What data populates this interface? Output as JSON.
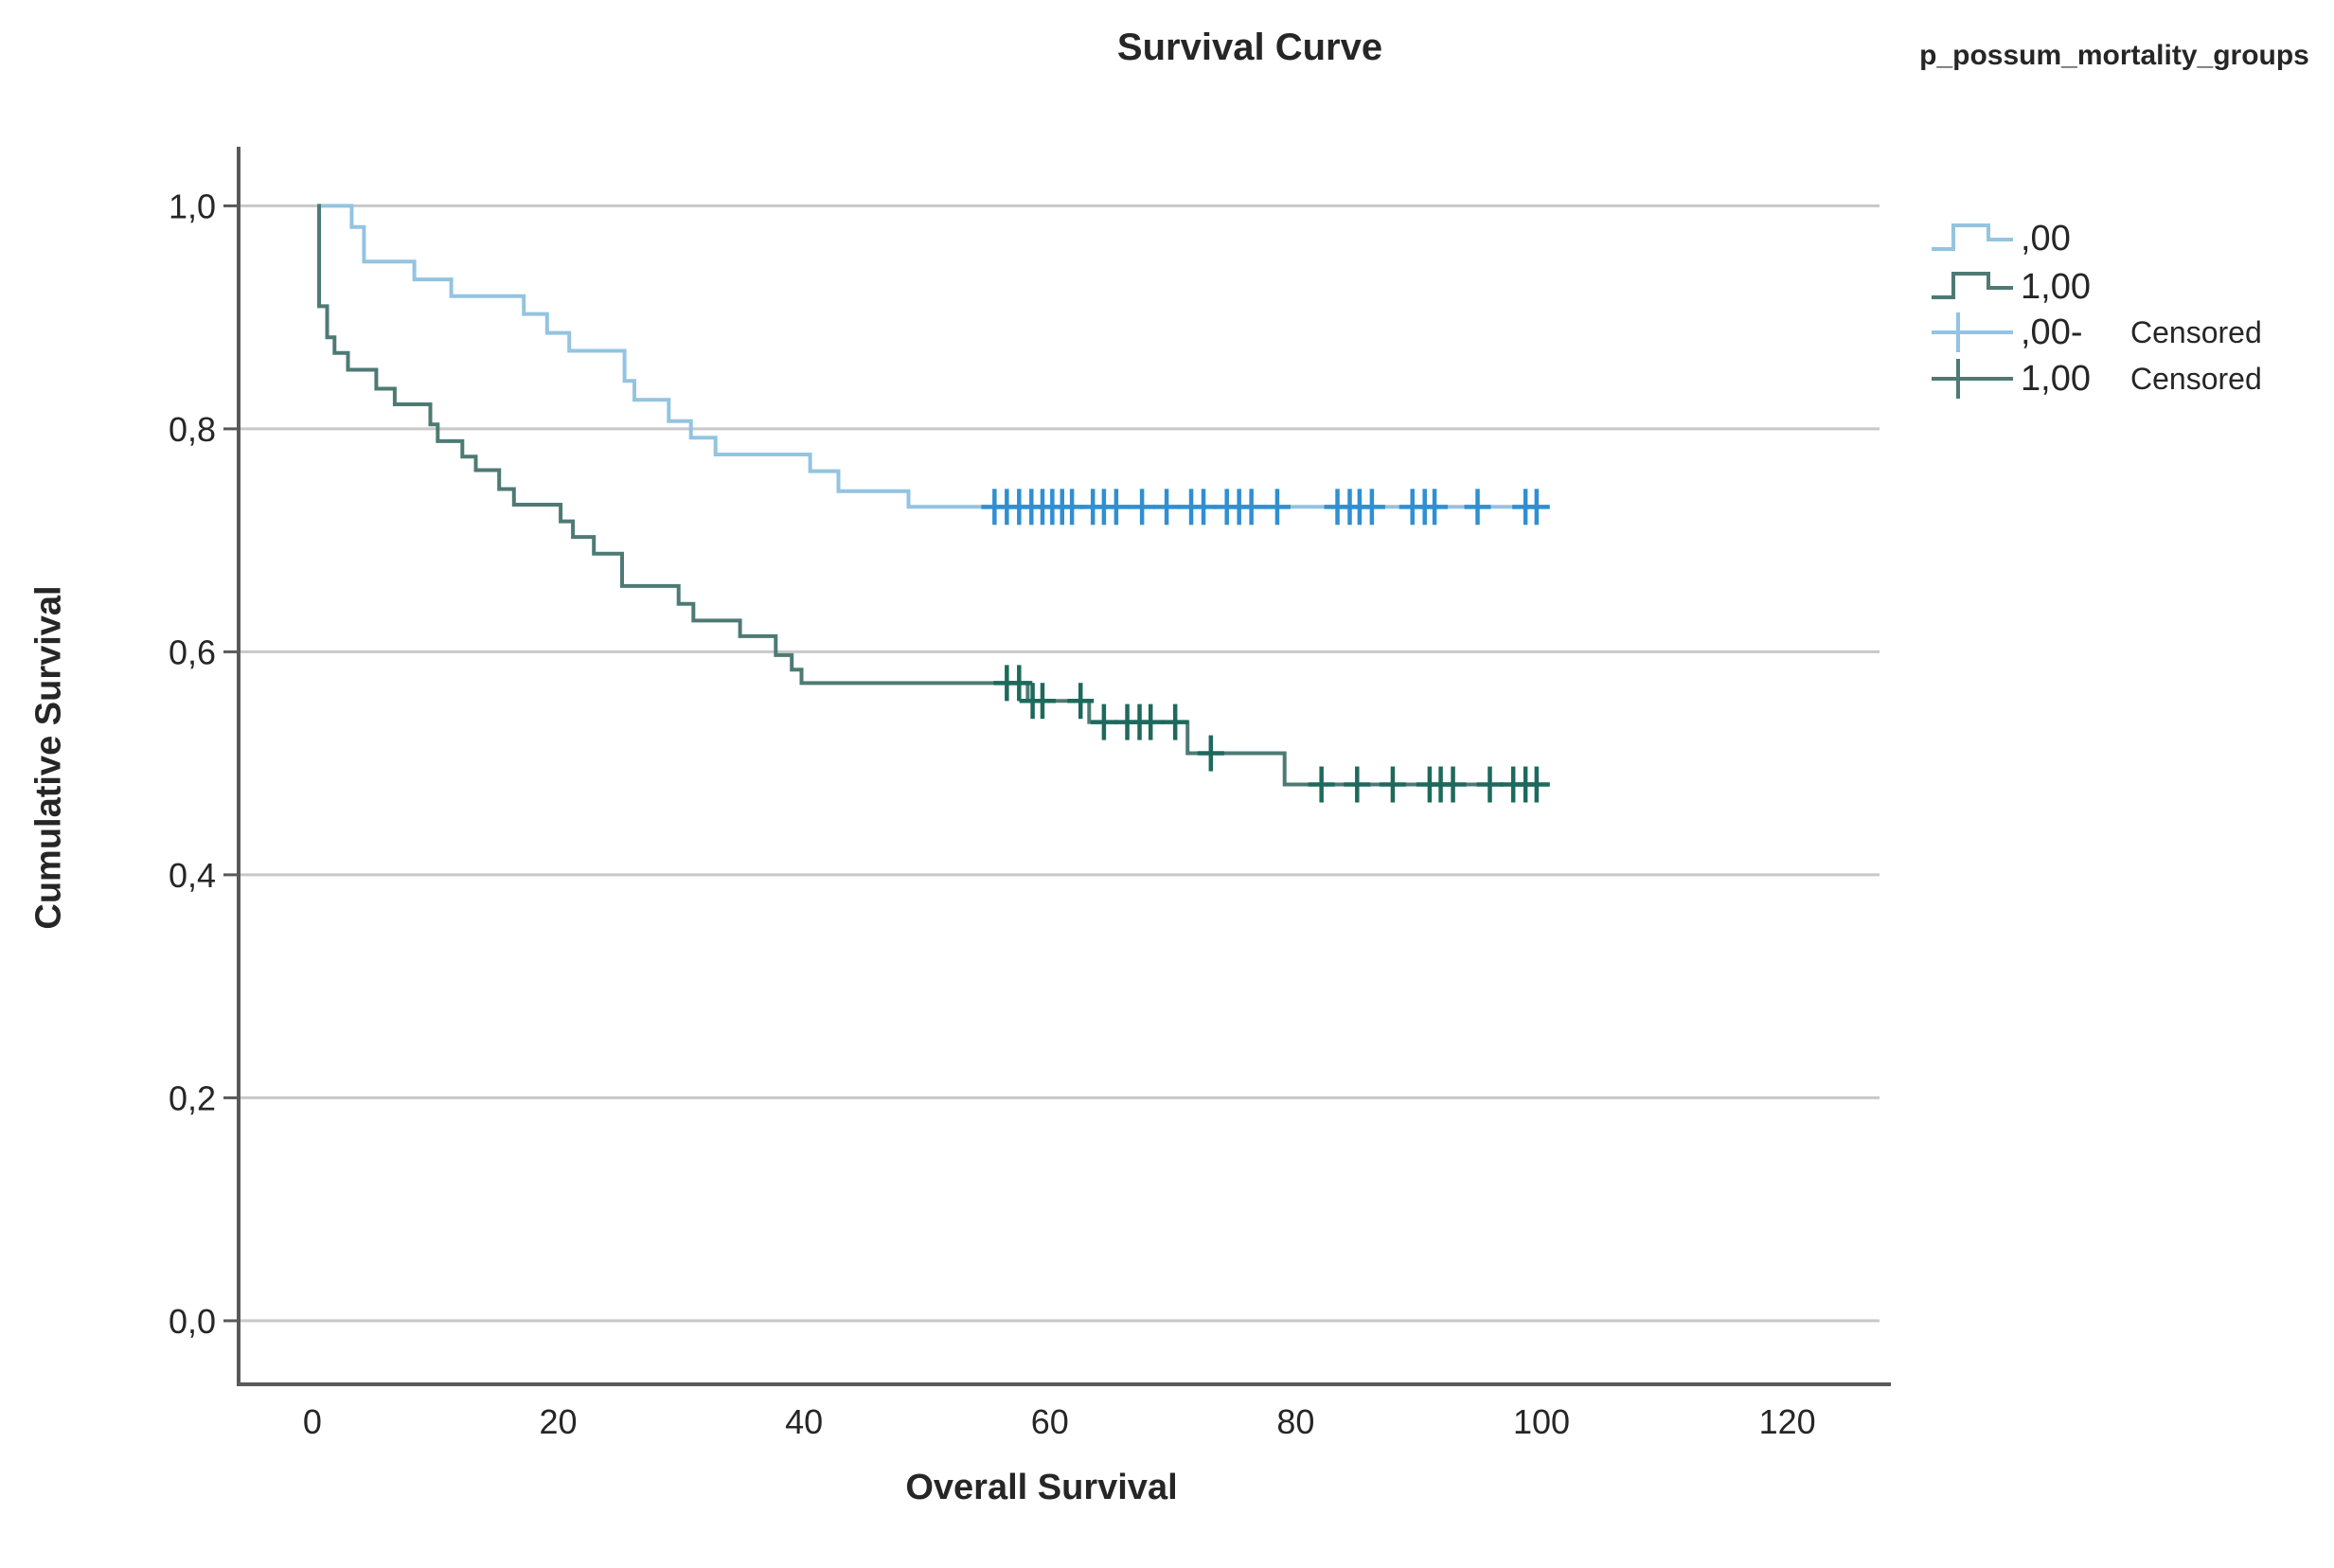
{
  "chart_data": {
    "type": "line",
    "subtype": "kaplan_meier_step",
    "title": "Survival Curve",
    "legend_title": "p_possum_mortality_groups",
    "xlabel": "Overall Survival",
    "ylabel": "Cumulative Survival",
    "xlim": [
      -6,
      127.5
    ],
    "ylim": [
      -0.057,
      1.053
    ],
    "x_ticks": [
      0,
      20,
      40,
      60,
      80,
      100,
      120
    ],
    "x_tick_labels": [
      "0",
      "20",
      "40",
      "60",
      "80",
      "100",
      "120"
    ],
    "y_ticks": [
      0.0,
      0.2,
      0.4,
      0.6,
      0.8,
      1.0
    ],
    "y_tick_labels": [
      "0,0",
      "0,2",
      "0,4",
      "0,6",
      "0,8",
      "1,0"
    ],
    "grid": "horizontal",
    "legend_position": "top-right",
    "colors": {
      "grid": "#c8c8c8",
      "axis": "#595959",
      "text": "#262626",
      "background": "#ffffff"
    },
    "series": [
      {
        "name": ",00",
        "line_color": "#93c4e1",
        "marker_color": "#2f8fd2",
        "end_x": 100.5,
        "steps": [
          [
            0.4,
            1.0
          ],
          [
            3.2,
            0.981
          ],
          [
            4.2,
            0.95
          ],
          [
            8.3,
            0.934
          ],
          [
            11.3,
            0.919
          ],
          [
            17.2,
            0.903
          ],
          [
            19.1,
            0.886
          ],
          [
            20.9,
            0.87
          ],
          [
            25.4,
            0.843
          ],
          [
            26.2,
            0.826
          ],
          [
            29.0,
            0.807
          ],
          [
            30.8,
            0.792
          ],
          [
            32.8,
            0.777
          ],
          [
            40.5,
            0.762
          ],
          [
            42.8,
            0.744
          ],
          [
            48.5,
            0.73
          ]
        ],
        "censored": [
          [
            55.5,
            0.73
          ],
          [
            56.5,
            0.73
          ],
          [
            57.5,
            0.73
          ],
          [
            58.5,
            0.73
          ],
          [
            59.4,
            0.73
          ],
          [
            60.2,
            0.73
          ],
          [
            61.0,
            0.73
          ],
          [
            61.8,
            0.73
          ],
          [
            63.5,
            0.73
          ],
          [
            64.4,
            0.73
          ],
          [
            65.4,
            0.73
          ],
          [
            67.5,
            0.73
          ],
          [
            69.5,
            0.73
          ],
          [
            71.5,
            0.73
          ],
          [
            72.5,
            0.73
          ],
          [
            74.4,
            0.73
          ],
          [
            75.4,
            0.73
          ],
          [
            76.4,
            0.73
          ],
          [
            78.5,
            0.73
          ],
          [
            83.4,
            0.73
          ],
          [
            84.4,
            0.73
          ],
          [
            85.2,
            0.73
          ],
          [
            86.2,
            0.73
          ],
          [
            89.5,
            0.73
          ],
          [
            90.5,
            0.73
          ],
          [
            91.3,
            0.73
          ],
          [
            94.8,
            0.73
          ],
          [
            98.7,
            0.73
          ],
          [
            99.6,
            0.73
          ]
        ]
      },
      {
        "name": "1,00",
        "line_color": "#4e7a74",
        "marker_color": "#1d6a5c",
        "end_x": 100.5,
        "steps": [
          [
            0.4,
            1.0
          ],
          [
            0.55,
            0.91
          ],
          [
            1.2,
            0.882
          ],
          [
            1.8,
            0.868
          ],
          [
            2.9,
            0.853
          ],
          [
            5.2,
            0.836
          ],
          [
            6.7,
            0.822
          ],
          [
            9.6,
            0.804
          ],
          [
            10.2,
            0.789
          ],
          [
            12.2,
            0.775
          ],
          [
            13.3,
            0.763
          ],
          [
            15.2,
            0.746
          ],
          [
            16.4,
            0.732
          ],
          [
            20.2,
            0.717
          ],
          [
            21.2,
            0.703
          ],
          [
            22.9,
            0.688
          ],
          [
            25.2,
            0.659
          ],
          [
            29.8,
            0.643
          ],
          [
            31.0,
            0.628
          ],
          [
            34.8,
            0.614
          ],
          [
            37.7,
            0.597
          ],
          [
            39.0,
            0.584
          ],
          [
            39.8,
            0.572
          ],
          [
            58.2,
            0.556
          ],
          [
            63.2,
            0.537
          ],
          [
            71.2,
            0.509
          ],
          [
            79.1,
            0.481
          ]
        ],
        "censored": [
          [
            56.5,
            0.572
          ],
          [
            57.5,
            0.572
          ],
          [
            58.6,
            0.556
          ],
          [
            59.4,
            0.556
          ],
          [
            62.5,
            0.556
          ],
          [
            64.4,
            0.537
          ],
          [
            66.3,
            0.537
          ],
          [
            67.3,
            0.537
          ],
          [
            68.2,
            0.537
          ],
          [
            70.2,
            0.537
          ],
          [
            73.1,
            0.509
          ],
          [
            82.1,
            0.481
          ],
          [
            85.0,
            0.481
          ],
          [
            87.9,
            0.481
          ],
          [
            90.9,
            0.481
          ],
          [
            91.8,
            0.481
          ],
          [
            92.8,
            0.481
          ],
          [
            95.8,
            0.481
          ],
          [
            97.7,
            0.481
          ],
          [
            98.7,
            0.481
          ],
          [
            99.6,
            0.481
          ]
        ]
      }
    ],
    "legend": {
      "items": [
        {
          "label": ",00",
          "glyph": "step-line",
          "series": 0,
          "suffix": ""
        },
        {
          "label": "1,00",
          "glyph": "step-line",
          "series": 1,
          "suffix": ""
        },
        {
          "label": ",00-",
          "glyph": "plus-line",
          "series": 0,
          "suffix": "Censored"
        },
        {
          "label": "1,00",
          "glyph": "plus-line",
          "series": 1,
          "suffix": "Censored"
        }
      ]
    }
  }
}
